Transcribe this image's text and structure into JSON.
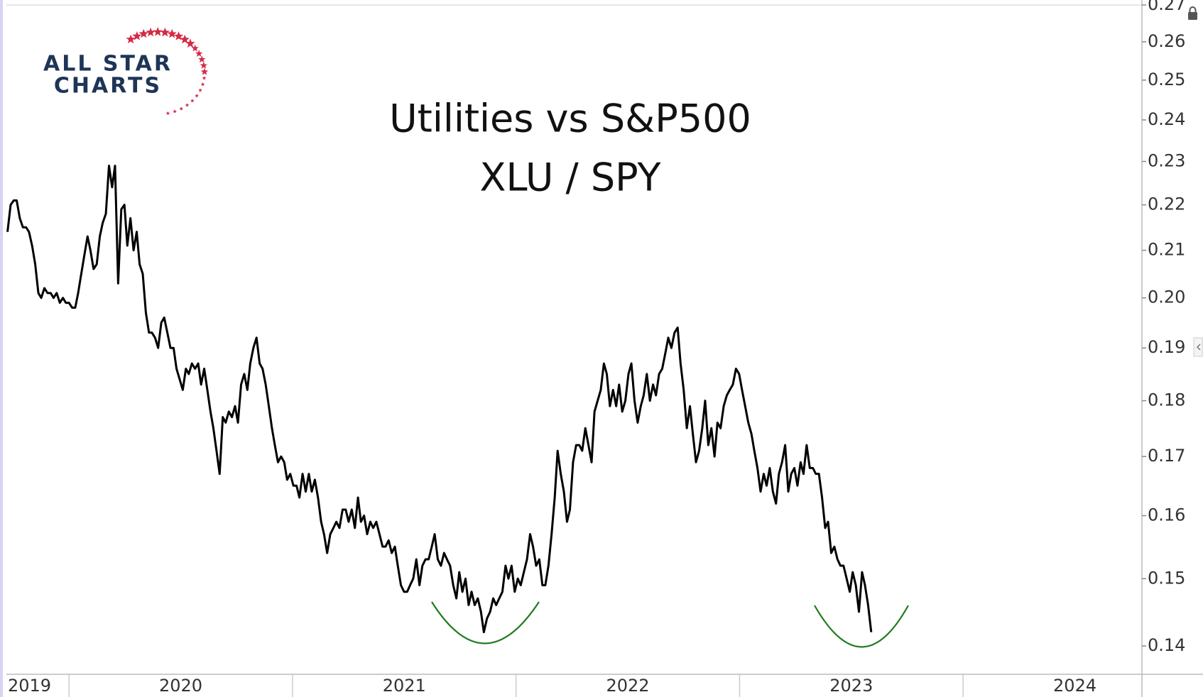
{
  "logo": {
    "line1": "ALL STAR",
    "line2": "CHARTS"
  },
  "chart_data": {
    "type": "line",
    "title": "Utilities vs S&P500",
    "subtitle": "XLU / SPY",
    "color": "#000000",
    "log_y": true,
    "grid": false,
    "xlim": [
      2019.72,
      2024.8
    ],
    "xticks": [
      2019,
      2020,
      2021,
      2022,
      2023,
      2024
    ],
    "ylim": [
      0.136,
      0.27
    ],
    "yticks": [
      0.14,
      0.15,
      0.16,
      0.17,
      0.18,
      0.19,
      {
        "value": 0.2,
        "label": "0.20"
      },
      0.21,
      0.22,
      0.23,
      0.24,
      0.25,
      0.26,
      0.27
    ],
    "x": [
      2019.725,
      2019.739,
      2019.753,
      2019.766,
      2019.78,
      2019.794,
      2019.808,
      2019.821,
      2019.835,
      2019.849,
      2019.863,
      2019.876,
      2019.89,
      2019.904,
      2019.918,
      2019.931,
      2019.945,
      2019.959,
      2019.973,
      2019.986,
      2020.0,
      2020.014,
      2020.028,
      2020.041,
      2020.055,
      2020.069,
      2020.083,
      2020.096,
      2020.11,
      2020.124,
      2020.138,
      2020.151,
      2020.165,
      2020.179,
      2020.193,
      2020.206,
      2020.22,
      2020.234,
      2020.248,
      2020.261,
      2020.275,
      2020.289,
      2020.303,
      2020.316,
      2020.33,
      2020.344,
      2020.358,
      2020.371,
      2020.385,
      2020.399,
      2020.413,
      2020.426,
      2020.44,
      2020.454,
      2020.468,
      2020.481,
      2020.495,
      2020.509,
      2020.523,
      2020.536,
      2020.55,
      2020.564,
      2020.578,
      2020.591,
      2020.605,
      2020.619,
      2020.633,
      2020.646,
      2020.66,
      2020.674,
      2020.688,
      2020.701,
      2020.715,
      2020.729,
      2020.743,
      2020.756,
      2020.77,
      2020.784,
      2020.798,
      2020.811,
      2020.825,
      2020.839,
      2020.853,
      2020.866,
      2020.88,
      2020.894,
      2020.908,
      2020.921,
      2020.935,
      2020.949,
      2020.963,
      2020.976,
      2020.99,
      2021.004,
      2021.018,
      2021.031,
      2021.045,
      2021.059,
      2021.073,
      2021.086,
      2021.1,
      2021.114,
      2021.128,
      2021.141,
      2021.155,
      2021.169,
      2021.183,
      2021.196,
      2021.21,
      2021.224,
      2021.238,
      2021.251,
      2021.265,
      2021.279,
      2021.293,
      2021.306,
      2021.32,
      2021.334,
      2021.348,
      2021.361,
      2021.375,
      2021.389,
      2021.403,
      2021.416,
      2021.43,
      2021.444,
      2021.458,
      2021.471,
      2021.485,
      2021.499,
      2021.513,
      2021.526,
      2021.54,
      2021.554,
      2021.568,
      2021.581,
      2021.595,
      2021.609,
      2021.623,
      2021.636,
      2021.65,
      2021.664,
      2021.678,
      2021.691,
      2021.705,
      2021.719,
      2021.733,
      2021.746,
      2021.76,
      2021.774,
      2021.788,
      2021.801,
      2021.815,
      2021.829,
      2021.843,
      2021.856,
      2021.87,
      2021.884,
      2021.898,
      2021.911,
      2021.925,
      2021.939,
      2021.953,
      2021.966,
      2021.98,
      2021.994,
      2022.008,
      2022.021,
      2022.035,
      2022.049,
      2022.063,
      2022.076,
      2022.09,
      2022.104,
      2022.118,
      2022.131,
      2022.145,
      2022.159,
      2022.173,
      2022.186,
      2022.2,
      2022.214,
      2022.228,
      2022.241,
      2022.255,
      2022.269,
      2022.283,
      2022.296,
      2022.31,
      2022.324,
      2022.338,
      2022.351,
      2022.365,
      2022.379,
      2022.393,
      2022.406,
      2022.42,
      2022.434,
      2022.448,
      2022.461,
      2022.475,
      2022.489,
      2022.503,
      2022.516,
      2022.53,
      2022.544,
      2022.558,
      2022.571,
      2022.585,
      2022.599,
      2022.613,
      2022.626,
      2022.64,
      2022.654,
      2022.668,
      2022.681,
      2022.695,
      2022.709,
      2022.723,
      2022.736,
      2022.75,
      2022.764,
      2022.778,
      2022.791,
      2022.805,
      2022.819,
      2022.833,
      2022.846,
      2022.86,
      2022.874,
      2022.888,
      2022.901,
      2022.915,
      2022.929,
      2022.943,
      2022.956,
      2022.97,
      2022.984,
      2022.998,
      2023.011,
      2023.025,
      2023.039,
      2023.053,
      2023.066,
      2023.08,
      2023.094,
      2023.108,
      2023.121,
      2023.135,
      2023.149,
      2023.163,
      2023.176,
      2023.19,
      2023.204,
      2023.218,
      2023.231,
      2023.245,
      2023.259,
      2023.273,
      2023.286,
      2023.3,
      2023.314,
      2023.328,
      2023.341,
      2023.355,
      2023.369,
      2023.383,
      2023.396,
      2023.41,
      2023.424,
      2023.438,
      2023.451,
      2023.465,
      2023.479,
      2023.493,
      2023.506,
      2023.52,
      2023.534,
      2023.548,
      2023.561,
      2023.575,
      2023.589
    ],
    "values": [
      0.214,
      0.22,
      0.221,
      0.221,
      0.217,
      0.215,
      0.215,
      0.214,
      0.211,
      0.207,
      0.201,
      0.2,
      0.202,
      0.201,
      0.201,
      0.2,
      0.201,
      0.199,
      0.2,
      0.199,
      0.199,
      0.198,
      0.198,
      0.201,
      0.205,
      0.209,
      0.213,
      0.21,
      0.206,
      0.207,
      0.213,
      0.216,
      0.218,
      0.229,
      0.224,
      0.229,
      0.203,
      0.219,
      0.22,
      0.211,
      0.217,
      0.21,
      0.214,
      0.207,
      0.205,
      0.197,
      0.193,
      0.193,
      0.192,
      0.19,
      0.195,
      0.196,
      0.193,
      0.19,
      0.19,
      0.186,
      0.184,
      0.182,
      0.186,
      0.185,
      0.187,
      0.186,
      0.187,
      0.183,
      0.186,
      0.182,
      0.178,
      0.175,
      0.171,
      0.167,
      0.177,
      0.176,
      0.178,
      0.177,
      0.179,
      0.176,
      0.183,
      0.185,
      0.182,
      0.187,
      0.19,
      0.192,
      0.187,
      0.186,
      0.183,
      0.179,
      0.175,
      0.172,
      0.169,
      0.17,
      0.169,
      0.166,
      0.167,
      0.165,
      0.165,
      0.163,
      0.167,
      0.164,
      0.167,
      0.164,
      0.166,
      0.163,
      0.159,
      0.157,
      0.154,
      0.157,
      0.158,
      0.159,
      0.158,
      0.161,
      0.161,
      0.159,
      0.161,
      0.158,
      0.163,
      0.159,
      0.16,
      0.157,
      0.159,
      0.158,
      0.159,
      0.157,
      0.155,
      0.155,
      0.156,
      0.154,
      0.155,
      0.152,
      0.149,
      0.148,
      0.148,
      0.149,
      0.15,
      0.153,
      0.149,
      0.152,
      0.153,
      0.153,
      0.155,
      0.157,
      0.153,
      0.152,
      0.154,
      0.153,
      0.152,
      0.149,
      0.147,
      0.151,
      0.148,
      0.15,
      0.146,
      0.148,
      0.146,
      0.147,
      0.145,
      0.142,
      0.144,
      0.145,
      0.147,
      0.146,
      0.147,
      0.148,
      0.152,
      0.15,
      0.152,
      0.148,
      0.15,
      0.149,
      0.151,
      0.153,
      0.157,
      0.155,
      0.152,
      0.153,
      0.149,
      0.149,
      0.152,
      0.157,
      0.163,
      0.171,
      0.167,
      0.164,
      0.159,
      0.161,
      0.169,
      0.172,
      0.172,
      0.171,
      0.175,
      0.172,
      0.169,
      0.178,
      0.18,
      0.182,
      0.187,
      0.185,
      0.179,
      0.182,
      0.179,
      0.183,
      0.178,
      0.18,
      0.185,
      0.187,
      0.18,
      0.176,
      0.179,
      0.181,
      0.185,
      0.18,
      0.183,
      0.181,
      0.185,
      0.186,
      0.189,
      0.192,
      0.19,
      0.193,
      0.194,
      0.187,
      0.182,
      0.175,
      0.179,
      0.174,
      0.169,
      0.171,
      0.175,
      0.18,
      0.172,
      0.175,
      0.17,
      0.176,
      0.175,
      0.179,
      0.181,
      0.182,
      0.183,
      0.186,
      0.185,
      0.182,
      0.179,
      0.176,
      0.174,
      0.171,
      0.168,
      0.164,
      0.167,
      0.165,
      0.168,
      0.164,
      0.162,
      0.167,
      0.169,
      0.172,
      0.164,
      0.167,
      0.168,
      0.165,
      0.169,
      0.167,
      0.172,
      0.168,
      0.168,
      0.167,
      0.167,
      0.163,
      0.158,
      0.159,
      0.154,
      0.155,
      0.153,
      0.152,
      0.152,
      0.15,
      0.148,
      0.151,
      0.149,
      0.145,
      0.151,
      0.149,
      0.146,
      0.142
    ]
  }
}
